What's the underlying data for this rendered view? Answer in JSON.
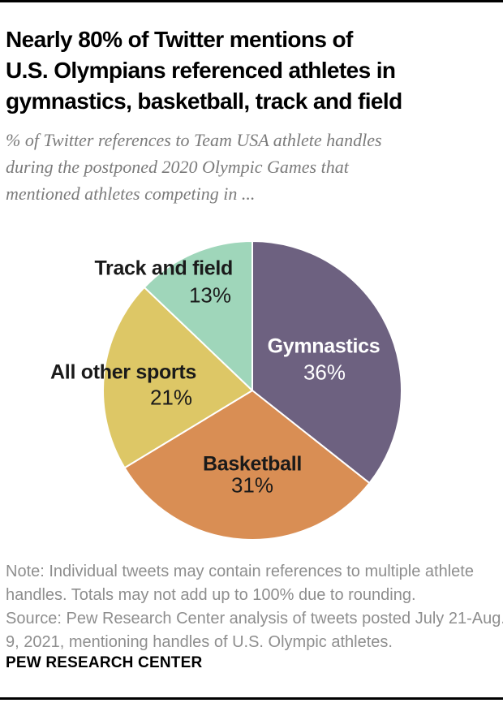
{
  "page": {
    "title_lines": [
      "Nearly 80% of Twitter mentions of",
      "U.S. Olympians referenced athletes in",
      "gymnastics, basketball, track and field"
    ],
    "subtitle_lines": [
      "% of Twitter references to Team USA athlete handles",
      "during the postponed 2020 Olympic Games that",
      "mentioned athletes competing in ..."
    ],
    "note_lines": [
      "Note: Individual tweets may contain references to multiple athlete",
      "handles. Totals may not add up to 100% due to rounding.",
      "Source: Pew Research Center analysis of tweets posted July 21-Aug.",
      "9, 2021, mentioning handles of U.S. Olympic athletes."
    ],
    "footer": "PEW RESEARCH CENTER",
    "colors": {
      "top_rule": "#000000",
      "bottom_rule": "#000000",
      "title_text": "#000000",
      "subtitle_text": "#7b7b7b",
      "note_text": "#8e8e8e"
    }
  },
  "chart_data": {
    "type": "pie",
    "title": "Nearly 80% of Twitter mentions of U.S. Olympians referenced athletes in gymnastics, basketball, track and field",
    "subtitle": "% of Twitter references to Team USA athlete handles during the postponed 2020 Olympic Games that mentioned athletes competing in ...",
    "categories": [
      "Gymnastics",
      "Basketball",
      "All other sports",
      "Track and field"
    ],
    "values": [
      36,
      31,
      21,
      13
    ],
    "start_angle_deg": 0,
    "direction": "clockwise",
    "legend": "none",
    "slices": [
      {
        "label": "Gymnastics",
        "value": 36,
        "pct_label": "36%",
        "color": "#6d6180",
        "text_color": "#ffffff",
        "label_position": "inside"
      },
      {
        "label": "Basketball",
        "value": 31,
        "pct_label": "31%",
        "color": "#d98e54",
        "text_color": "#1a1a1a",
        "label_position": "inside"
      },
      {
        "label": "All other sports",
        "value": 21,
        "pct_label": "21%",
        "color": "#ddc766",
        "text_color": "#1a1a1a",
        "label_position": "outside"
      },
      {
        "label": "Track and field",
        "value": 13,
        "pct_label": "13%",
        "color": "#9fd6ba",
        "text_color": "#1a1a1a",
        "label_position": "outside"
      }
    ],
    "note": "Note: Individual tweets may contain references to multiple athlete handles. Totals may not add up to 100% due to rounding.",
    "source": "Source: Pew Research Center analysis of tweets posted July 21-Aug. 9, 2021, mentioning handles of U.S. Olympic athletes."
  }
}
